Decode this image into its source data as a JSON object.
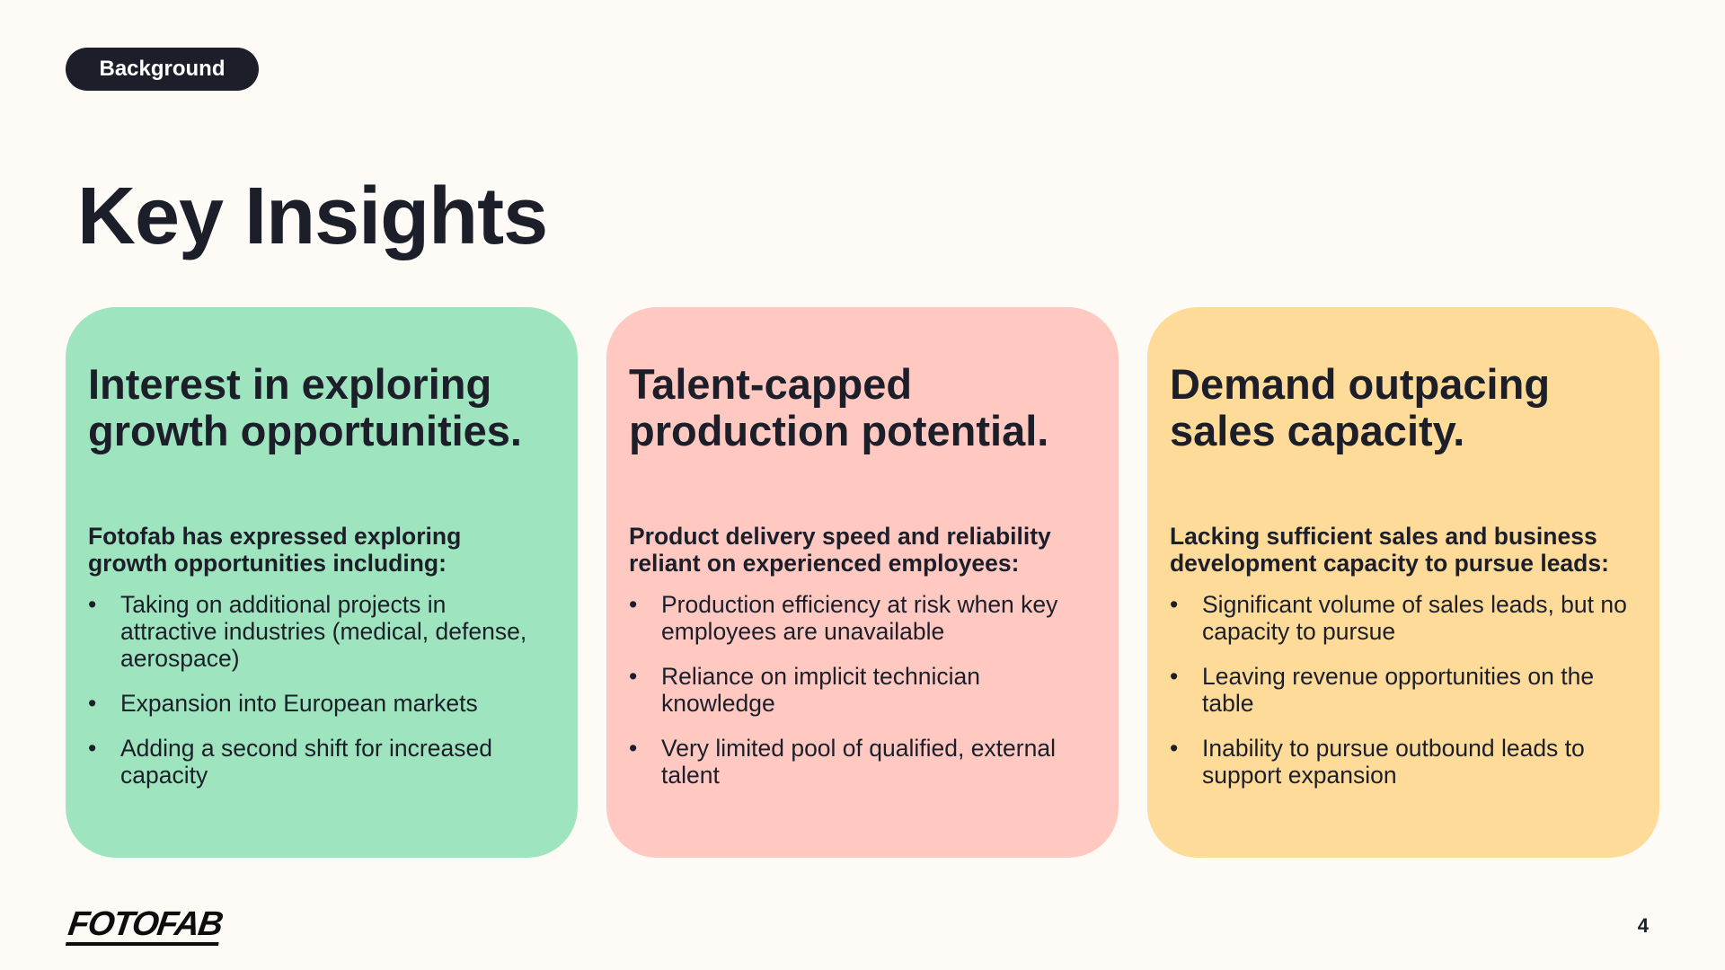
{
  "badge": "Background",
  "title": "Key Insights",
  "cards": [
    {
      "heading": "Interest in exploring growth opportunities.",
      "lead": "Fotofab has expressed exploring growth opportunities including:",
      "bullets": [
        "Taking on additional projects in attractive industries (medical, defense, aerospace)",
        "Expansion into European markets",
        "Adding a second shift for increased capacity"
      ],
      "color": "#9ee4be"
    },
    {
      "heading": "Talent-capped production potential.",
      "lead": "Product delivery speed and reliability reliant on experienced employees:",
      "bullets": [
        "Production efficiency at risk when key employees are unavailable",
        "Reliance on implicit technician knowledge",
        "Very limited pool of qualified, external talent"
      ],
      "color": "#ffc9c2"
    },
    {
      "heading": "Demand outpacing sales capacity.",
      "lead": "Lacking sufficient sales and business development capacity to pursue leads:",
      "bullets": [
        "Significant volume of sales leads, but no capacity to pursue",
        "Leaving revenue opportunities on the table",
        "Inability to pursue outbound leads to support expansion"
      ],
      "color": "#fedb99"
    }
  ],
  "logo": "FOTOFAB",
  "page_number": "4"
}
